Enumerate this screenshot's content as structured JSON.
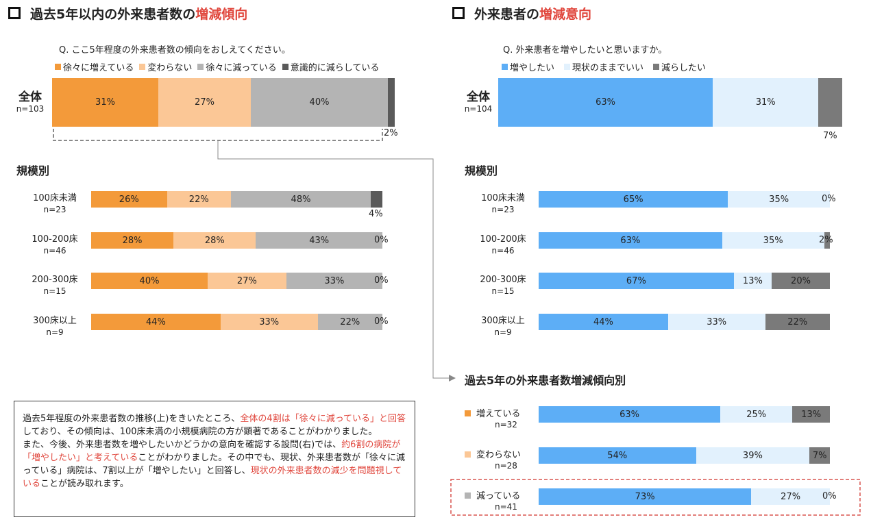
{
  "colors": {
    "inc": "#f39a3a",
    "same": "#fbc796",
    "dec": "#b4b4b4",
    "dec_int": "#5a5a5a",
    "want_inc": "#5daef6",
    "keep": "#e2f1fd",
    "want_dec": "#7a7a7a",
    "highlight": "#e0463c"
  },
  "left": {
    "title_pre": "過去5年以内の外来患者数の",
    "title_hl": "増減傾向",
    "question": "Q. ここ5年程度の外来患者数の傾向をおしえてください。",
    "legend": [
      "徐々に増えている",
      "変わらない",
      "徐々に減っている",
      "意識的に減らしている"
    ],
    "total": {
      "label": "全体",
      "n": "n=103",
      "values": [
        31,
        27,
        40,
        2
      ],
      "labels": [
        "31%",
        "27%",
        "40%",
        "2%"
      ]
    },
    "sub_title": "規模別",
    "rows": [
      {
        "label": "100床未満",
        "n": "n=23",
        "values": [
          26,
          22,
          48,
          4
        ],
        "labels": [
          "26%",
          "22%",
          "48%",
          "4%"
        ]
      },
      {
        "label": "100-200床",
        "n": "n=46",
        "values": [
          28,
          28,
          43,
          0
        ],
        "labels": [
          "28%",
          "28%",
          "43%",
          "0%"
        ]
      },
      {
        "label": "200-300床",
        "n": "n=15",
        "values": [
          40,
          27,
          33,
          0
        ],
        "labels": [
          "40%",
          "27%",
          "33%",
          "0%"
        ]
      },
      {
        "label": "300床以上",
        "n": "n=9",
        "values": [
          44,
          33,
          22,
          0
        ],
        "labels": [
          "44%",
          "33%",
          "22%",
          "0%"
        ]
      }
    ]
  },
  "right": {
    "title_pre": "外来患者の",
    "title_hl": "増減意向",
    "question": "Q. 外来患者を増やしたいと思いますか。",
    "legend": [
      "増やしたい",
      "現状のままでいい",
      "減らしたい"
    ],
    "total": {
      "label": "全体",
      "n": "n=104",
      "values": [
        63,
        31,
        7
      ],
      "labels": [
        "63%",
        "31%",
        "7%"
      ]
    },
    "sub_title": "規模別",
    "rows": [
      {
        "label": "100床未満",
        "n": "n=23",
        "values": [
          65,
          35,
          0
        ],
        "labels": [
          "65%",
          "35%",
          "0%"
        ]
      },
      {
        "label": "100-200床",
        "n": "n=46",
        "values": [
          63,
          35,
          2
        ],
        "labels": [
          "63%",
          "35%",
          "2%"
        ]
      },
      {
        "label": "200-300床",
        "n": "n=15",
        "values": [
          67,
          13,
          20
        ],
        "labels": [
          "67%",
          "13%",
          "20%"
        ]
      },
      {
        "label": "300床以上",
        "n": "n=9",
        "values": [
          44,
          33,
          22
        ],
        "labels": [
          "44%",
          "33%",
          "22%"
        ]
      }
    ],
    "trend_title": "過去5年の外来患者数増減傾向別",
    "trend_rows": [
      {
        "label": "増えている",
        "n": "n=32",
        "values": [
          63,
          25,
          13
        ],
        "labels": [
          "63%",
          "25%",
          "13%"
        ]
      },
      {
        "label": "変わらない",
        "n": "n=28",
        "values": [
          54,
          39,
          7
        ],
        "labels": [
          "54%",
          "39%",
          "7%"
        ]
      },
      {
        "label": "減っている",
        "n": "n=41",
        "values": [
          73,
          27,
          0
        ],
        "labels": [
          "73%",
          "27%",
          "0%"
        ]
      }
    ]
  },
  "summary": {
    "p1_a": "過去5年程度の外来患者数の推移(上)をきいたところ、",
    "p1_red": "全体の4割は「徐々に減っている」と回答",
    "p1_b": "しており、その傾向は、100床未満の小規模病院の方が顕著であることがわかりました。",
    "p2_a": "また、今後、外来患者数を増やしたいかどうかの意向を確認する設問(右)では、",
    "p2_red": "約6割の病院が「増やしたい」と考えている",
    "p2_b": "ことがわかりました。その中でも、現状、外来患者数が「徐々に減っている」病院は、7割以上が「増やしたい」と回答し、",
    "p2_red2": "現状の外来患者数の減少を問題視している",
    "p2_c": "ことが読み取れます。"
  },
  "chart_data": [
    {
      "type": "bar",
      "orientation": "horizontal-stacked-100",
      "title": "過去5年以内の外来患者数の増減傾向",
      "question": "Q. ここ5年程度の外来患者数の傾向をおしえてください。",
      "categories": [
        "全体",
        "100床未満",
        "100-200床",
        "200-300床",
        "300床以上"
      ],
      "n": [
        "n=103",
        "n=23",
        "n=46",
        "n=15",
        "n=9"
      ],
      "series": [
        {
          "name": "徐々に増えている",
          "values": [
            31,
            26,
            28,
            40,
            44
          ]
        },
        {
          "name": "変わらない",
          "values": [
            27,
            22,
            28,
            27,
            33
          ]
        },
        {
          "name": "徐々に減っている",
          "values": [
            40,
            48,
            43,
            33,
            22
          ]
        },
        {
          "name": "意識的に減らしている",
          "values": [
            2,
            4,
            0,
            0,
            0
          ]
        }
      ],
      "unit": "%",
      "legend": "top"
    },
    {
      "type": "bar",
      "orientation": "horizontal-stacked-100",
      "title": "外来患者の増減意向",
      "question": "Q. 外来患者を増やしたいと思いますか。",
      "categories": [
        "全体",
        "100床未満",
        "100-200床",
        "200-300床",
        "300床以上"
      ],
      "n": [
        "n=104",
        "n=23",
        "n=46",
        "n=15",
        "n=9"
      ],
      "series": [
        {
          "name": "増やしたい",
          "values": [
            63,
            65,
            63,
            67,
            44
          ]
        },
        {
          "name": "現状のままでいい",
          "values": [
            31,
            35,
            35,
            13,
            33
          ]
        },
        {
          "name": "減らしたい",
          "values": [
            7,
            0,
            2,
            20,
            22
          ]
        }
      ],
      "unit": "%",
      "legend": "top"
    },
    {
      "type": "bar",
      "orientation": "horizontal-stacked-100",
      "title": "過去5年の外来患者数増減傾向別",
      "categories": [
        "増えている",
        "変わらない",
        "減っている"
      ],
      "n": [
        "n=32",
        "n=28",
        "n=41"
      ],
      "series": [
        {
          "name": "増やしたい",
          "values": [
            63,
            54,
            73
          ]
        },
        {
          "name": "現状のままでいい",
          "values": [
            25,
            39,
            27
          ]
        },
        {
          "name": "減らしたい",
          "values": [
            13,
            7,
            0
          ]
        }
      ],
      "unit": "%"
    }
  ]
}
